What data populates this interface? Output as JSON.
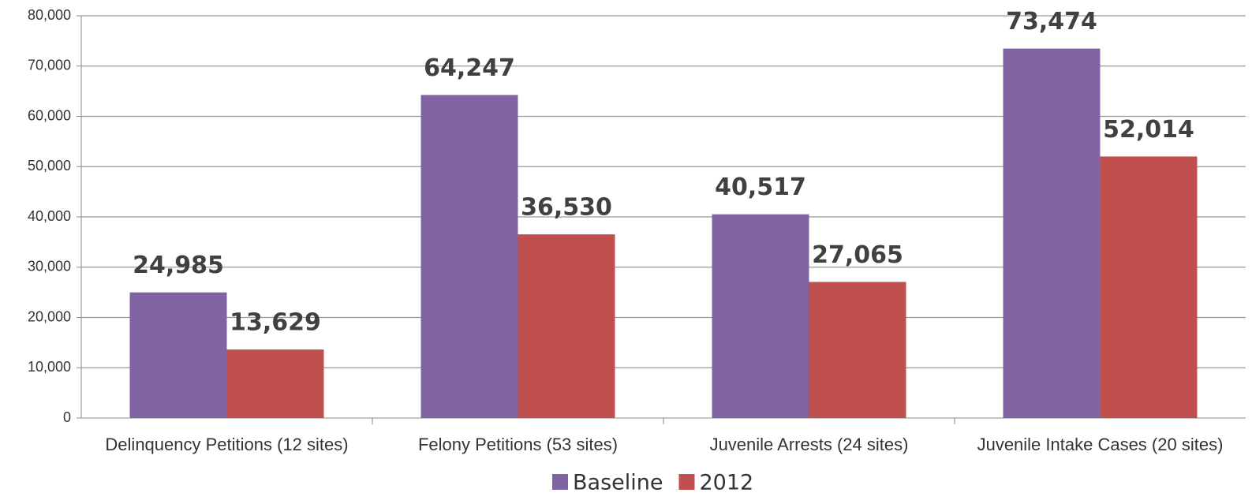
{
  "chart_data": {
    "type": "bar",
    "categories": [
      "Delinquency Petitions (12 sites)",
      "Felony Petitions (53 sites)",
      "Juvenile Arrests (24 sites)",
      "Juvenile Intake Cases (20 sites)"
    ],
    "series": [
      {
        "name": "Baseline",
        "color": "#8064a2",
        "values": [
          24985,
          64247,
          40517,
          73474
        ],
        "value_labels": [
          "24,985",
          "64,247",
          "40,517",
          "73,474"
        ]
      },
      {
        "name": "2012",
        "color": "#c0504d",
        "values": [
          13629,
          36530,
          27065,
          52014
        ],
        "value_labels": [
          "13,629",
          "36,530",
          "27,065",
          "52,014"
        ]
      }
    ],
    "ylim": [
      0,
      80000
    ],
    "yticks": [
      0,
      {
        "value": 10000,
        "label": "10,000"
      },
      {
        "value": 20000,
        "label": "20,000"
      },
      {
        "value": 30000,
        "label": "30,000"
      },
      {
        "value": 40000,
        "label": "40,000"
      },
      {
        "value": 50000,
        "label": "50,000"
      },
      {
        "value": 60000,
        "label": "60,000"
      },
      {
        "value": 70000,
        "label": "70,000"
      },
      {
        "value": 80000,
        "label": "80,000"
      }
    ],
    "grid": true,
    "legend": "bottom"
  }
}
